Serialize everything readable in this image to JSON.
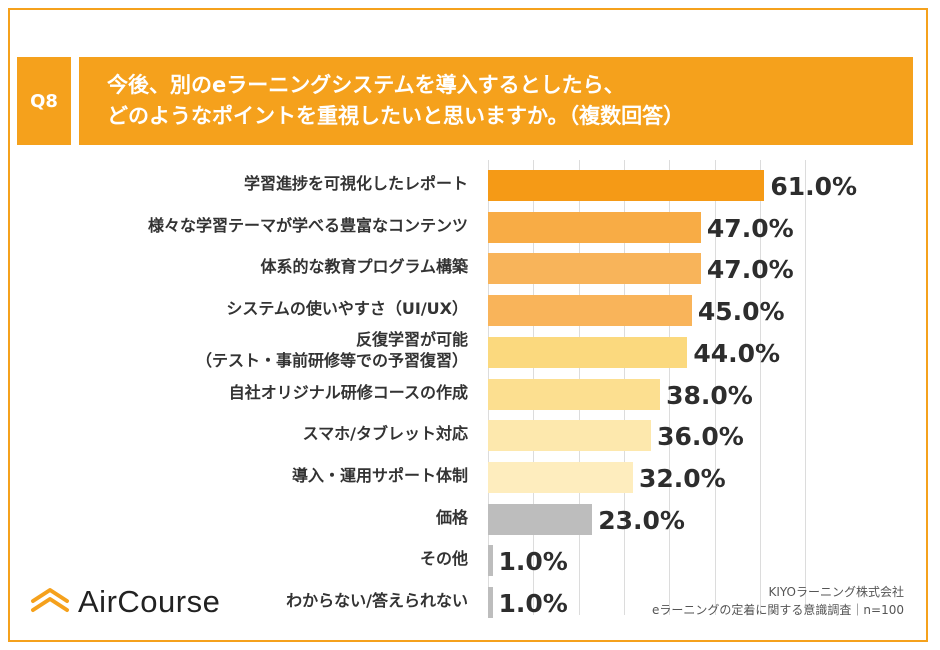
{
  "question": {
    "number": "Q8",
    "line1": "今後、別のeラーニングシステムを導入するとしたら、",
    "line2": "どのようなポイントを重視したいと思いますか。（複数回答）"
  },
  "brand": {
    "name": "AirCourse",
    "icon": "aircourse-logo-icon"
  },
  "source": {
    "company": "KIYOラーニング株式会社",
    "survey": "eラーニングの定着に関する意識調査｜n=100"
  },
  "colors": {
    "accent": "#f5a11c"
  },
  "chart_data": {
    "type": "bar",
    "orientation": "horizontal",
    "title": "今後、別のeラーニングシステムを導入するとしたら、どのようなポイントを重視したいと思いますか。（複数回答）",
    "xlabel": "",
    "ylabel": "",
    "xlim": [
      0,
      70
    ],
    "unit": "%",
    "categories": [
      [
        "学習進捗を可視化したレポート"
      ],
      [
        "様々な学習テーマが学べる豊富なコンテンツ"
      ],
      [
        "体系的な教育プログラム構築"
      ],
      [
        "システムの使いやすさ（UI/UX）"
      ],
      [
        "反復学習が可能",
        "（テスト・事前研修等での予習復習）"
      ],
      [
        "自社オリジナル研修コースの作成"
      ],
      [
        "スマホ/タブレット対応"
      ],
      [
        "導入・運用サポート体制"
      ],
      [
        "価格"
      ],
      [
        "その他"
      ],
      [
        "わからない/答えられない"
      ]
    ],
    "values": [
      61.0,
      47.0,
      47.0,
      45.0,
      44.0,
      38.0,
      36.0,
      32.0,
      23.0,
      1.0,
      1.0
    ],
    "value_labels": [
      "61.0%",
      "47.0%",
      "47.0%",
      "45.0%",
      "44.0%",
      "38.0%",
      "36.0%",
      "32.0%",
      "23.0%",
      "1.0%",
      "1.0%"
    ],
    "bar_colors": [
      "#f59a16",
      "#f8ac45",
      "#f8b45a",
      "#f9b45a",
      "#fbd97e",
      "#fcdf90",
      "#fde8ad",
      "#feedbe",
      "#bdbdbd",
      "#bdbdbd",
      "#bdbdbd"
    ]
  }
}
